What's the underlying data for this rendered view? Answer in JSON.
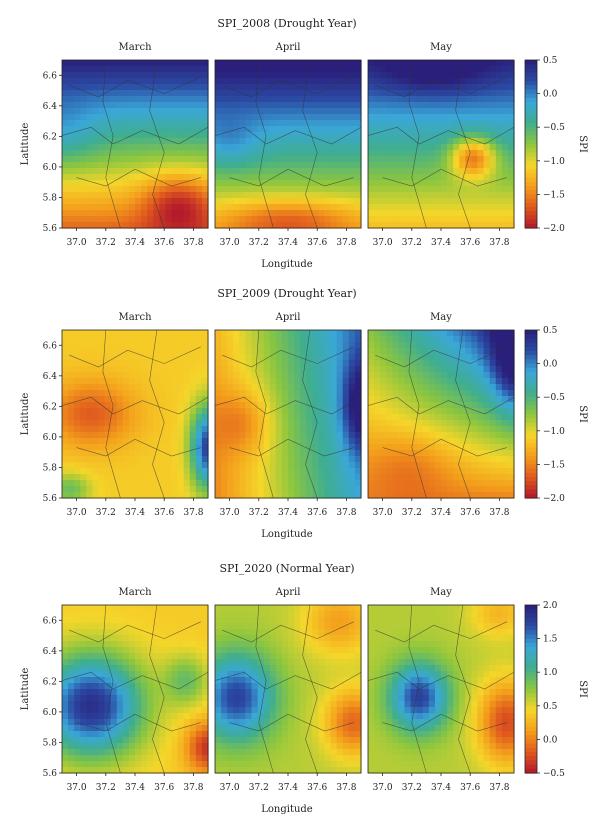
{
  "chart_data": [
    {
      "type": "heatmap",
      "title": "SPI_2008 (Drought Year)",
      "panels": [
        "March",
        "April",
        "May"
      ],
      "xlabel": "Longitude",
      "ylabel": "Latitude",
      "xlim": [
        36.9,
        37.9
      ],
      "ylim": [
        5.6,
        6.7
      ],
      "xticks": [
        "37.0",
        "37.2",
        "37.4",
        "37.6",
        "37.8"
      ],
      "yticks": [
        "5.6",
        "5.8",
        "6.0",
        "6.2",
        "6.4",
        "6.6"
      ],
      "colorbar": {
        "label": "SPI",
        "range": [
          -2.0,
          0.5
        ],
        "ticks": [
          "0.5",
          "0.0",
          "−0.5",
          "−1.0",
          "−1.5",
          "−2.0"
        ]
      }
    },
    {
      "type": "heatmap",
      "title": "SPI_2009 (Drought Year)",
      "panels": [
        "March",
        "April",
        "May"
      ],
      "xlabel": "Longitude",
      "ylabel": "Latitude",
      "xlim": [
        36.9,
        37.9
      ],
      "ylim": [
        5.6,
        6.7
      ],
      "xticks": [
        "37.0",
        "37.2",
        "37.4",
        "37.6",
        "37.8"
      ],
      "yticks": [
        "5.6",
        "5.8",
        "6.0",
        "6.2",
        "6.4",
        "6.6"
      ],
      "colorbar": {
        "label": "SPI",
        "range": [
          -2.0,
          0.5
        ],
        "ticks": [
          "0.5",
          "0.0",
          "−0.5",
          "−1.0",
          "−1.5",
          "−2.0"
        ]
      }
    },
    {
      "type": "heatmap",
      "title": "SPI_2020 (Normal Year)",
      "panels": [
        "March",
        "April",
        "May"
      ],
      "xlabel": "Longitude",
      "ylabel": "Latitude",
      "xlim": [
        36.9,
        37.9
      ],
      "ylim": [
        5.6,
        6.7
      ],
      "xticks": [
        "37.0",
        "37.2",
        "37.4",
        "37.6",
        "37.8"
      ],
      "yticks": [
        "5.6",
        "5.8",
        "6.0",
        "6.2",
        "6.4",
        "6.6"
      ],
      "colorbar": {
        "label": "SPI",
        "range": [
          -0.5,
          2.0
        ],
        "ticks": [
          "2.0",
          "1.5",
          "1.0",
          "0.5",
          "0.0",
          "−0.5"
        ]
      }
    }
  ],
  "colors": {
    "scale": [
      "#b2182b",
      "#e0591e",
      "#f4a01c",
      "#f5d62a",
      "#8cc63f",
      "#3fae8f",
      "#3aa7d8",
      "#2b4aa3",
      "#2a1f7a"
    ]
  }
}
